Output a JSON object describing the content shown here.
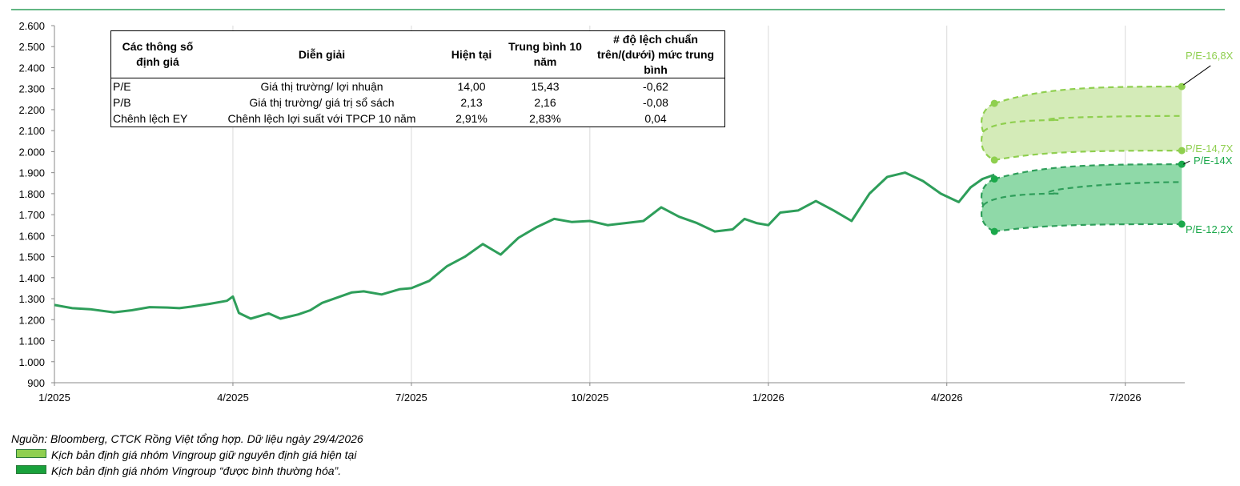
{
  "chart_data": {
    "type": "line",
    "ylim": [
      900,
      2600
    ],
    "yticks": [
      "2.600",
      "2.500",
      "2.400",
      "2.300",
      "2.200",
      "2.100",
      "2.000",
      "1.900",
      "1.800",
      "1.700",
      "1.600",
      "1.500",
      "1.400",
      "1.300",
      "1.200",
      "1.100",
      "1.000",
      "900"
    ],
    "xticks": [
      "1/2025",
      "4/2025",
      "7/2025",
      "10/2025",
      "1/2026",
      "4/2026",
      "7/2026"
    ],
    "grid": "vertical",
    "series": [
      {
        "color": "#2e9e5a",
        "x": [
          0,
          0.3,
          0.6,
          1,
          1.3,
          1.6,
          1.9,
          2.1,
          2.3,
          2.6,
          2.9,
          3.0,
          3.1,
          3.3,
          3.6,
          3.8,
          4.1,
          4.3,
          4.5,
          4.8,
          5.0,
          5.2,
          5.5,
          5.8,
          6.0,
          6.3,
          6.6,
          6.9,
          7.2,
          7.5,
          7.8,
          8.1,
          8.4,
          8.7,
          9.0,
          9.3,
          9.6,
          9.9,
          10.2,
          10.5,
          10.8,
          11.1,
          11.4,
          11.6,
          11.8,
          12.0,
          12.2,
          12.5,
          12.8,
          13.1,
          13.4,
          13.7,
          14.0,
          14.3,
          14.6,
          14.9,
          15.2,
          15.4,
          15.6,
          15.8
        ],
        "y": [
          1270,
          1255,
          1250,
          1235,
          1245,
          1260,
          1258,
          1255,
          1262,
          1275,
          1290,
          1310,
          1232,
          1205,
          1230,
          1205,
          1225,
          1245,
          1280,
          1310,
          1330,
          1335,
          1320,
          1345,
          1350,
          1385,
          1455,
          1500,
          1560,
          1510,
          1590,
          1640,
          1680,
          1665,
          1670,
          1650,
          1660,
          1670,
          1735,
          1690,
          1660,
          1620,
          1630,
          1680,
          1660,
          1650,
          1710,
          1720,
          1765,
          1720,
          1670,
          1800,
          1880,
          1900,
          1860,
          1800,
          1760,
          1830,
          1870,
          1890
        ],
        "note": "historical index level"
      }
    ],
    "scenarios": {
      "band_high": {
        "upper_label": "P/E-16,8X",
        "upper": [
          2230,
          2310
        ],
        "mid": [
          2150,
          2170
        ],
        "lower_label": "P/E-14,7X",
        "lower": [
          1960,
          2005
        ]
      },
      "band_low": {
        "upper_label": "P/E-14X",
        "upper": [
          1870,
          1940
        ],
        "mid": [
          1800,
          1855
        ],
        "lower_label": "P/E-12,2X",
        "lower": [
          1620,
          1655
        ]
      },
      "start_x": 15.8,
      "end_x": 18.95
    },
    "colors": {
      "line": "#2e9e5a",
      "band_high_fill": "#d4ebb8",
      "band_high_stroke": "#8fcf4f",
      "band_low_fill": "#8fd9a8",
      "band_low_stroke": "#2e9e5a",
      "band_high_point": "#8fcf4f",
      "band_low_point": "#1aa84a"
    }
  },
  "table": {
    "headers": [
      "Các thông số định giá",
      "Diễn giải",
      "Hiện tại",
      "Trung bình 10 năm",
      "# độ lệch chuẩn trên/(dưới) mức trung bình"
    ],
    "rows": [
      [
        "P/E",
        "Giá thị trường/ lợi nhuận",
        "14,00",
        "15,43",
        "-0,62"
      ],
      [
        "P/B",
        "Giá thị trường/ giá trị sổ sách",
        "2,13",
        "2,16",
        "-0,08"
      ],
      [
        "Chênh lệch EY",
        "Chênh lệch lợi suất với TPCP 10 năm",
        "2,91%",
        "2,83%",
        "0,04"
      ]
    ]
  },
  "footer": {
    "source": "Nguồn: Bloomberg, CTCK Rồng Việt tổng hợp. Dữ liệu ngày 29/4/2026",
    "legend_1": "Kịch bản định giá nhóm Vingroup giữ nguyên định giá hiện tại",
    "legend_2": "Kịch bản định giá nhóm Vingroup “được bình thường hóa”."
  }
}
